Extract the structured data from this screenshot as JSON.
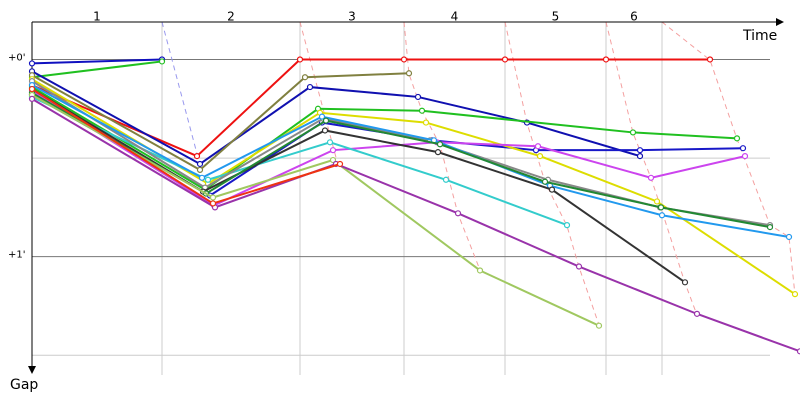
{
  "chart_data": {
    "type": "line",
    "x_label": "Time",
    "y_label": "Gap",
    "xlim": [
      0,
      768
    ],
    "xticks": [
      130,
      268,
      372,
      473,
      574,
      630
    ],
    "lap_labels": [
      "1",
      "2",
      "3",
      "4",
      "5",
      "6"
    ],
    "ylim": [
      -0.19,
      1.6
    ],
    "yticks": [
      {
        "value": 0,
        "label": "+0'"
      },
      {
        "value": 1,
        "label": "+1'"
      }
    ],
    "minor_grid": [
      0.5,
      1.5
    ],
    "series": [
      {
        "color": "#1010c0",
        "x": [
          0,
          130
        ],
        "values": [
          0.02,
          0
        ]
      },
      {
        "color": "#20c020",
        "x": [
          0,
          130
        ],
        "values": [
          0.09,
          0.01
        ]
      },
      {
        "color": "#ee1111",
        "x": [
          0,
          165,
          268,
          372,
          473,
          574,
          678
        ],
        "values": [
          0.13,
          0.49,
          0,
          0,
          0,
          0,
          0
        ]
      },
      {
        "color": "#1010b0",
        "x": [
          0,
          168,
          278,
          386,
          495,
          608
        ],
        "values": [
          0.06,
          0.53,
          0.14,
          0.19,
          0.32,
          0.49
        ]
      },
      {
        "color": "#808040",
        "x": [
          0,
          168,
          273,
          377
        ],
        "values": [
          0.08,
          0.56,
          0.09,
          0.07
        ]
      },
      {
        "color": "#20c020",
        "x": [
          0,
          173,
          286,
          390,
          601,
          705
        ],
        "values": [
          0.14,
          0.66,
          0.25,
          0.26,
          0.37,
          0.4
        ]
      },
      {
        "color": "#1818c8",
        "x": [
          0,
          178,
          290,
          400,
          504,
          608,
          711
        ],
        "values": [
          0.18,
          0.69,
          0.32,
          0.41,
          0.46,
          0.46,
          0.45
        ]
      },
      {
        "color": "#dddd00",
        "x": [
          0,
          176,
          288,
          394,
          508,
          625,
          763
        ],
        "values": [
          0.1,
          0.63,
          0.27,
          0.32,
          0.49,
          0.72,
          1.19
        ]
      },
      {
        "color": "#cc44ee",
        "x": [
          0,
          182,
          301,
          405,
          506,
          619,
          713
        ],
        "values": [
          0.16,
          0.74,
          0.46,
          0.42,
          0.44,
          0.6,
          0.49
        ]
      },
      {
        "color": "#33cccc",
        "x": [
          0,
          176,
          298,
          414,
          535
        ],
        "values": [
          0.19,
          0.61,
          0.42,
          0.61,
          0.84
        ]
      },
      {
        "color": "#888888",
        "x": [
          0,
          173,
          291,
          398,
          516,
          628,
          738
        ],
        "values": [
          0.11,
          0.65,
          0.3,
          0.41,
          0.61,
          0.75,
          0.84
        ]
      },
      {
        "color": "#2299ee",
        "x": [
          0,
          170,
          290,
          402,
          518,
          630,
          757
        ],
        "values": [
          0.13,
          0.6,
          0.29,
          0.41,
          0.64,
          0.79,
          0.9
        ]
      },
      {
        "color": "#333333",
        "x": [
          0,
          171,
          293,
          406,
          520,
          653
        ],
        "values": [
          0.15,
          0.67,
          0.36,
          0.47,
          0.66,
          1.13
        ]
      },
      {
        "color": "#228833",
        "x": [
          0,
          174,
          294,
          408,
          513,
          629,
          738
        ],
        "values": [
          0.17,
          0.68,
          0.31,
          0.43,
          0.62,
          0.75,
          0.85
        ]
      },
      {
        "color": "#a0c860",
        "x": [
          0,
          181,
          301,
          448,
          567
        ],
        "values": [
          0.18,
          0.7,
          0.51,
          1.07,
          1.35
        ]
      },
      {
        "color": "#9933aa",
        "x": [
          0,
          183,
          304,
          426,
          547,
          665,
          768
        ],
        "values": [
          0.2,
          0.75,
          0.53,
          0.78,
          1.05,
          1.29,
          1.48
        ]
      },
      {
        "color": "#ee3311",
        "x": [
          0,
          181,
          308
        ],
        "values": [
          0.15,
          0.73,
          0.53
        ]
      }
    ]
  }
}
